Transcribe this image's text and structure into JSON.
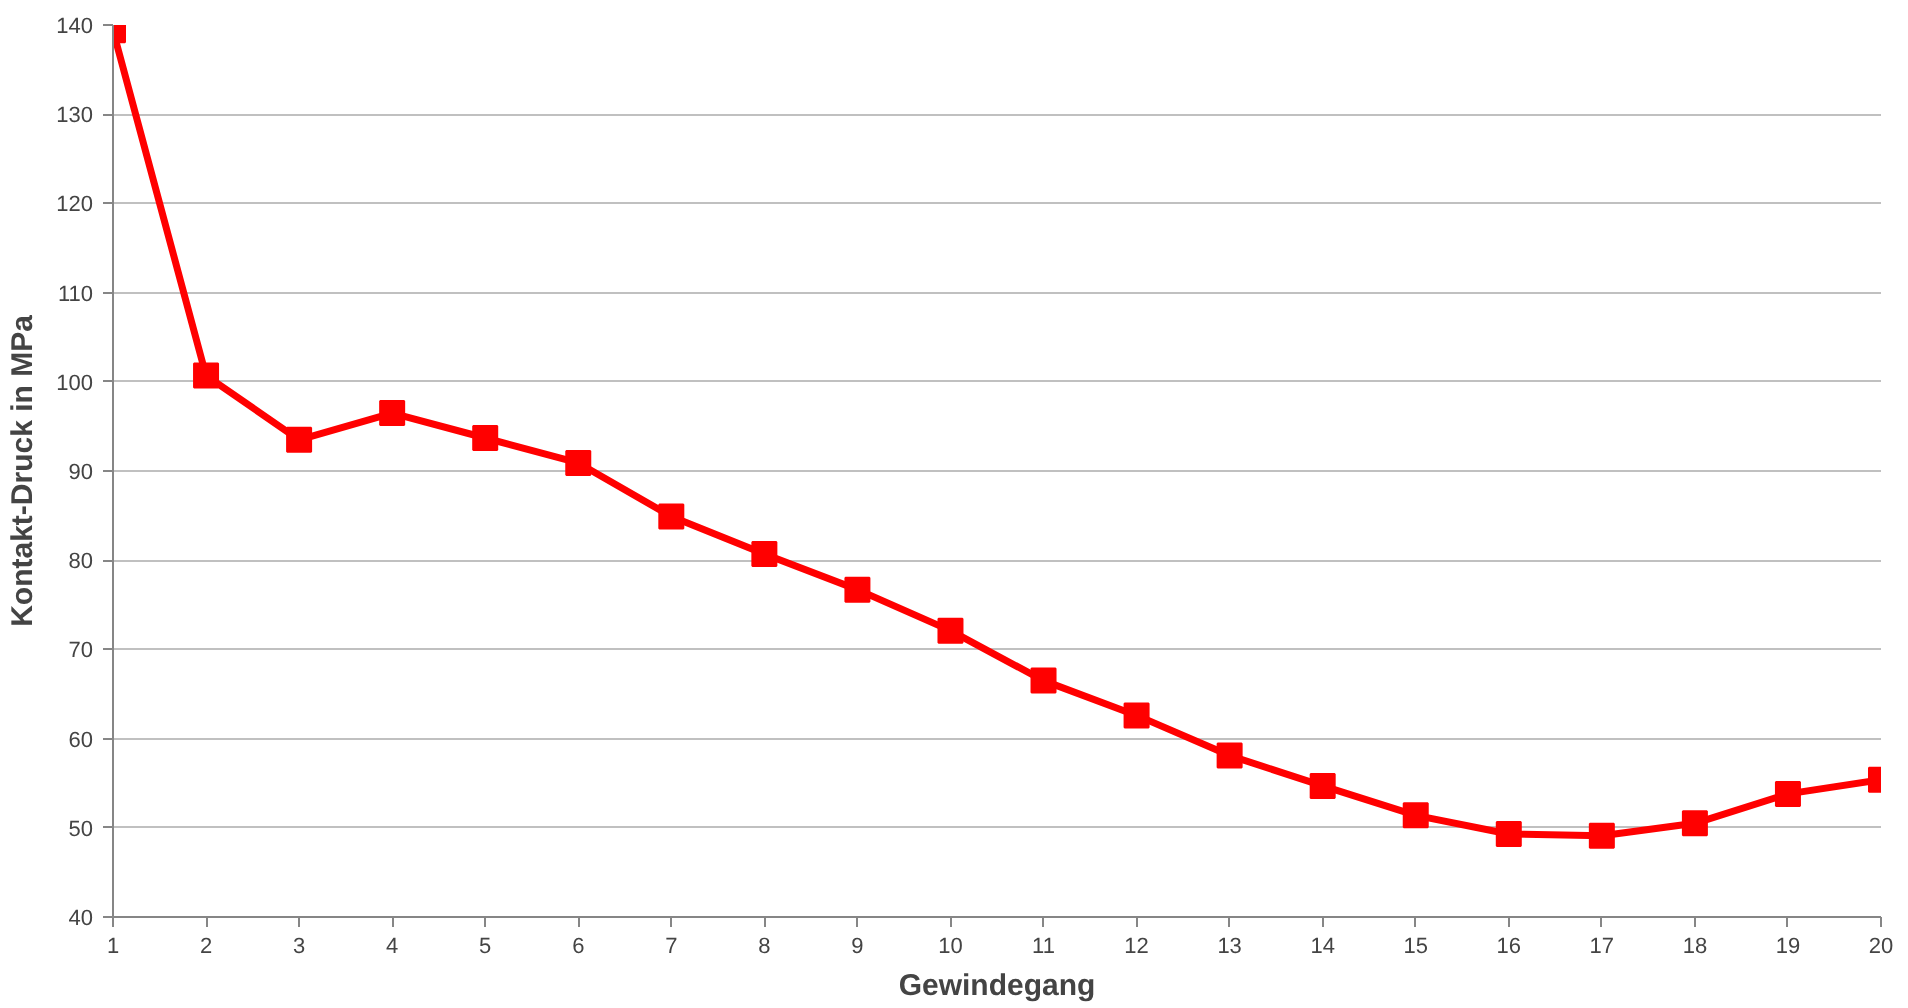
{
  "chart_data": {
    "type": "line",
    "xlabel": "Gewindegang",
    "ylabel": "Kontakt-Druck in MPa",
    "x": [
      1,
      2,
      3,
      4,
      5,
      6,
      7,
      8,
      9,
      10,
      11,
      12,
      13,
      14,
      15,
      16,
      17,
      18,
      19,
      20
    ],
    "series": [
      {
        "color": "#ff0000",
        "values": [
          139.4,
          100.7,
          93.5,
          96.5,
          93.7,
          90.9,
          84.9,
          80.7,
          76.7,
          72.1,
          66.5,
          62.6,
          58.1,
          54.7,
          51.4,
          49.3,
          49.1,
          50.5,
          53.8,
          55.4
        ]
      }
    ],
    "xlim": [
      1,
      20
    ],
    "xticks": [
      1,
      2,
      3,
      4,
      5,
      6,
      7,
      8,
      9,
      10,
      11,
      12,
      13,
      14,
      15,
      16,
      17,
      18,
      19,
      20
    ],
    "ylim": [
      40,
      140
    ],
    "yticks": [
      40,
      50,
      60,
      70,
      80,
      90,
      100,
      110,
      120,
      130,
      140
    ],
    "grid": "y",
    "marker": "square",
    "line_style": "solid"
  }
}
